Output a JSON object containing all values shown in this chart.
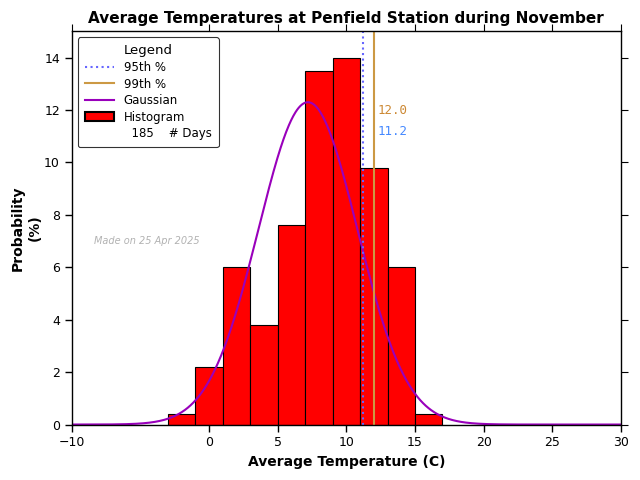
{
  "title": "Average Temperatures at Penfield Station during November",
  "xlabel": "Average Temperature (C)",
  "ylabel": "Probability\n(%)",
  "xlim": [
    -10,
    30
  ],
  "ylim": [
    0,
    15
  ],
  "bar_color": "#ff0000",
  "bar_edgecolor": "#000000",
  "background_color": "#ffffff",
  "bin_edges": [
    -3,
    -1,
    1,
    3,
    5,
    7,
    9,
    11,
    13,
    15,
    17
  ],
  "bar_heights": [
    0.4,
    2.2,
    6.0,
    3.8,
    7.6,
    13.5,
    14.0,
    9.8,
    6.0,
    0.4
  ],
  "gaussian_mean": 7.2,
  "gaussian_std": 3.6,
  "gaussian_amplitude": 12.3,
  "percentile_95": 11.2,
  "percentile_99": 12.0,
  "n_days": 185,
  "note": "Made on 25 Apr 2025",
  "legend_title": "Legend",
  "p95_color": "#6666ff",
  "p99_color": "#cc9944",
  "gaussian_color": "#9900bb",
  "p95_label": "95th %",
  "p99_label": "99th %",
  "gaussian_label": "Gaussian",
  "hist_label": "Histogram",
  "days_label": "# Days",
  "p95_text_color": "#4488ff",
  "p99_text_color": "#cc8833",
  "xticks": [
    -10,
    0,
    5,
    10,
    15,
    20,
    25,
    30
  ],
  "yticks": [
    0,
    2,
    4,
    6,
    8,
    10,
    12,
    14
  ]
}
